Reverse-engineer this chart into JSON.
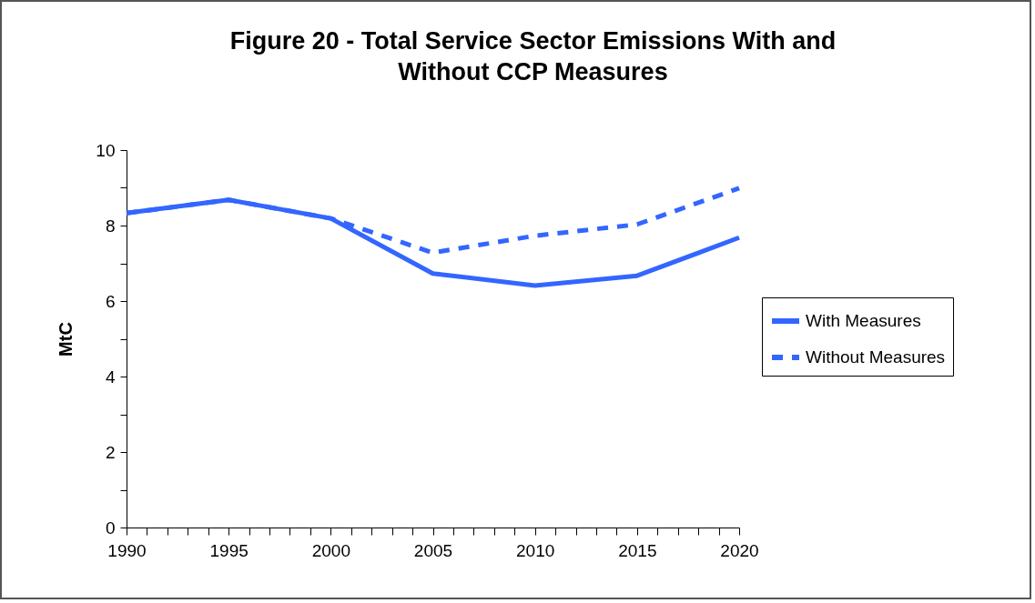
{
  "chart_data": {
    "type": "line",
    "title": "Figure 20 - Total Service Sector Emissions With and Without CCP Measures",
    "ylabel": "MtC",
    "x": [
      1990,
      1995,
      2000,
      2005,
      2010,
      2015,
      2020
    ],
    "series": [
      {
        "name": "With Measures",
        "color": "#3366ff",
        "line_style": "solid",
        "values": [
          8.33,
          8.68,
          8.19,
          6.73,
          6.41,
          6.67,
          7.68
        ]
      },
      {
        "name": "Without Measures",
        "color": "#3366ff",
        "line_style": "dashed",
        "values": [
          8.33,
          8.68,
          8.19,
          7.28,
          7.73,
          8.03,
          8.99
        ]
      }
    ],
    "xlim": [
      1990,
      2020
    ],
    "xticks": [
      1990,
      {
        "value": 1991,
        "label": null
      },
      {
        "value": 1992,
        "label": null
      },
      {
        "value": 1993,
        "label": null
      },
      {
        "value": 1994,
        "label": null
      },
      1995,
      {
        "value": 1996,
        "label": null
      },
      {
        "value": 1997,
        "label": null
      },
      {
        "value": 1998,
        "label": null
      },
      {
        "value": 1999,
        "label": null
      },
      2000,
      {
        "value": 2001,
        "label": null
      },
      {
        "value": 2002,
        "label": null
      },
      {
        "value": 2003,
        "label": null
      },
      {
        "value": 2004,
        "label": null
      },
      2005,
      {
        "value": 2006,
        "label": null
      },
      {
        "value": 2007,
        "label": null
      },
      {
        "value": 2008,
        "label": null
      },
      {
        "value": 2009,
        "label": null
      },
      2010,
      {
        "value": 2011,
        "label": null
      },
      {
        "value": 2012,
        "label": null
      },
      {
        "value": 2013,
        "label": null
      },
      {
        "value": 2014,
        "label": null
      },
      2015,
      {
        "value": 2016,
        "label": null
      },
      {
        "value": 2017,
        "label": null
      },
      {
        "value": 2018,
        "label": null
      },
      {
        "value": 2019,
        "label": null
      },
      2020
    ],
    "ylim": [
      0,
      10
    ],
    "yticks": [
      0,
      {
        "value": 1,
        "label": null
      },
      2,
      {
        "value": 3,
        "label": null
      },
      4,
      {
        "value": 5,
        "label": null
      },
      6,
      {
        "value": 7,
        "label": null
      },
      8,
      {
        "value": 9,
        "label": null
      },
      10
    ],
    "grid": false,
    "legend": "right",
    "marker": "none"
  }
}
